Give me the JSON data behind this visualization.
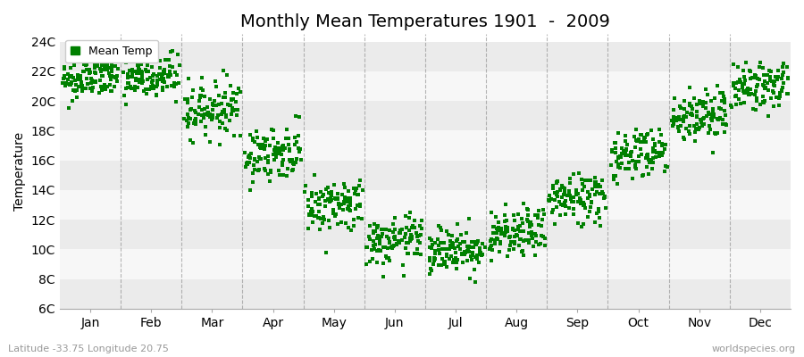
{
  "title": "Monthly Mean Temperatures 1901  -  2009",
  "ylabel": "Temperature",
  "dot_color": "#008000",
  "background_color": "#ffffff",
  "band_color_1": "#ebebeb",
  "band_color_2": "#f7f7f7",
  "yticks": [
    6,
    8,
    10,
    12,
    14,
    16,
    18,
    20,
    22,
    24
  ],
  "ylim": [
    6,
    24.5
  ],
  "months": [
    "Jan",
    "Feb",
    "Mar",
    "Apr",
    "May",
    "Jun",
    "Jul",
    "Aug",
    "Sep",
    "Oct",
    "Nov",
    "Dec"
  ],
  "mean_temps": [
    21.5,
    21.5,
    19.5,
    16.5,
    13.0,
    10.5,
    10.0,
    11.0,
    13.5,
    16.5,
    19.0,
    21.0
  ],
  "std_temps": [
    0.7,
    0.8,
    0.9,
    0.9,
    0.9,
    0.8,
    0.8,
    0.8,
    0.9,
    0.9,
    0.9,
    0.8
  ],
  "trend": [
    0.003,
    0.003,
    0.003,
    0.003,
    0.003,
    0.003,
    0.003,
    0.003,
    0.003,
    0.003,
    0.003,
    0.003
  ],
  "n_years": 109,
  "subtitle_left": "Latitude -33.75 Longitude 20.75",
  "subtitle_right": "worldspecies.org",
  "legend_label": "Mean Temp",
  "grid_color": "#888888",
  "title_fontsize": 14,
  "axis_fontsize": 10,
  "tick_fontsize": 10,
  "dot_size": 5,
  "dot_marker": "s"
}
